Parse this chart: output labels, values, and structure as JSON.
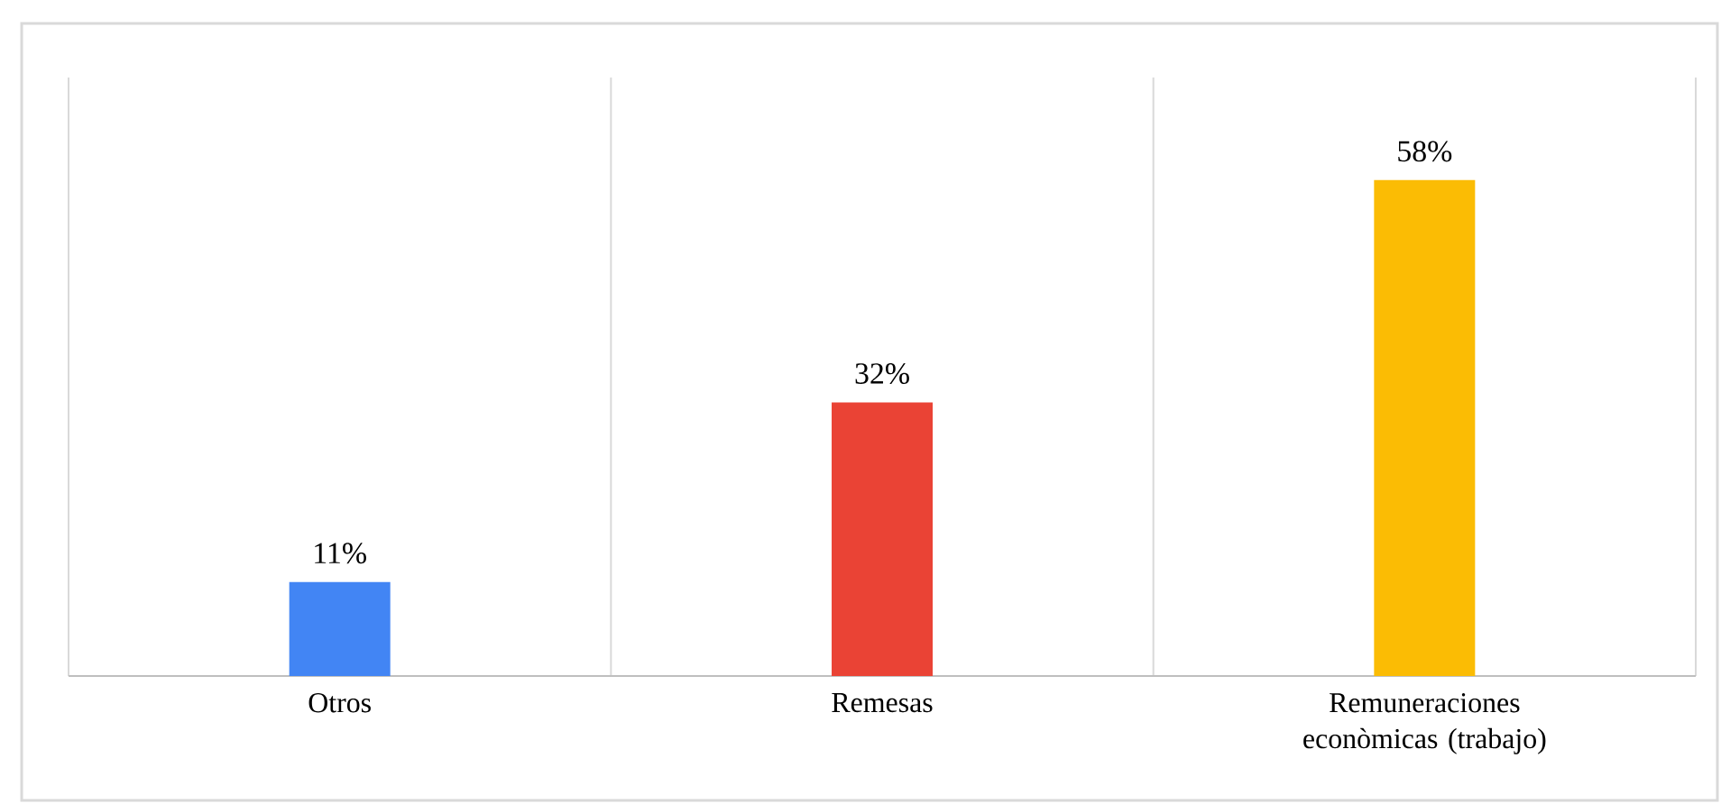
{
  "chart_data": {
    "type": "bar",
    "categories": [
      "Otros",
      "Remesas",
      "Remuneraciones econòmicas (trabajo)"
    ],
    "values": [
      11,
      32,
      58
    ],
    "value_labels": [
      "11%",
      "32%",
      "58%"
    ],
    "colors": [
      "#4285f4",
      "#ea4335",
      "#fbbc04"
    ],
    "ylim": [
      0,
      70
    ],
    "grid": "x",
    "tick_labels": "x"
  }
}
